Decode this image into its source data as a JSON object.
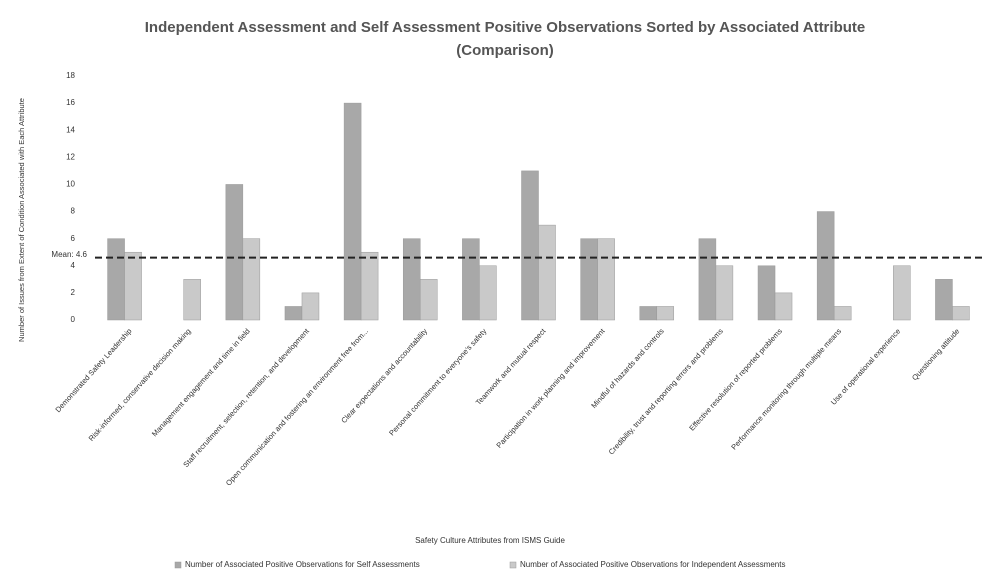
{
  "chart_data": {
    "type": "bar",
    "title": "Independent Assessment and Self Assessment Positive Observations Sorted by Associated Attribute (Comparison)",
    "y_label": "Number of Issues from Extent of Condition Associated with Each Attribute",
    "x_label": "Safety Culture Attributes from ISMS Guide",
    "categories": [
      "Demonstrated Safety Leadership",
      "Risk-informed, conservative decision making",
      "Management engagement and time in field",
      "Staff recruitment, selection, retention, and development",
      "Open communication and fostering an environment free from...",
      "Clear expectations and accountability",
      "Personal commitment to everyone's safety",
      "Teamwork and mutual respect",
      "Participation in work planning and improvement",
      "Mindful of hazards and controls",
      "Credibility, trust and reporting errors and problems",
      "Effective resolution of reported problems",
      "Performance monitoring through multiple means",
      "Use of operational experience",
      "Questioning attitude"
    ],
    "series": [
      {
        "name": "Number of Associated Positive Observations for Self Assessments",
        "color": "#a8a8a8",
        "values": [
          6,
          0,
          10,
          1,
          16,
          6,
          6,
          11,
          6,
          1,
          6,
          4,
          8,
          0,
          3
        ]
      },
      {
        "name": "Number of Associated Positive Observations for Independent Assessments",
        "color": "#c9c9c9",
        "values": [
          5,
          3,
          6,
          2,
          5,
          3,
          4,
          7,
          6,
          1,
          4,
          2,
          1,
          4,
          1
        ]
      }
    ],
    "mean": {
      "value": 4.6,
      "label": "Mean: 4.6"
    },
    "ylim": [
      0,
      18
    ],
    "yticks": [
      0,
      2,
      4,
      6,
      8,
      10,
      12,
      14,
      16,
      18
    ],
    "grid": false
  }
}
